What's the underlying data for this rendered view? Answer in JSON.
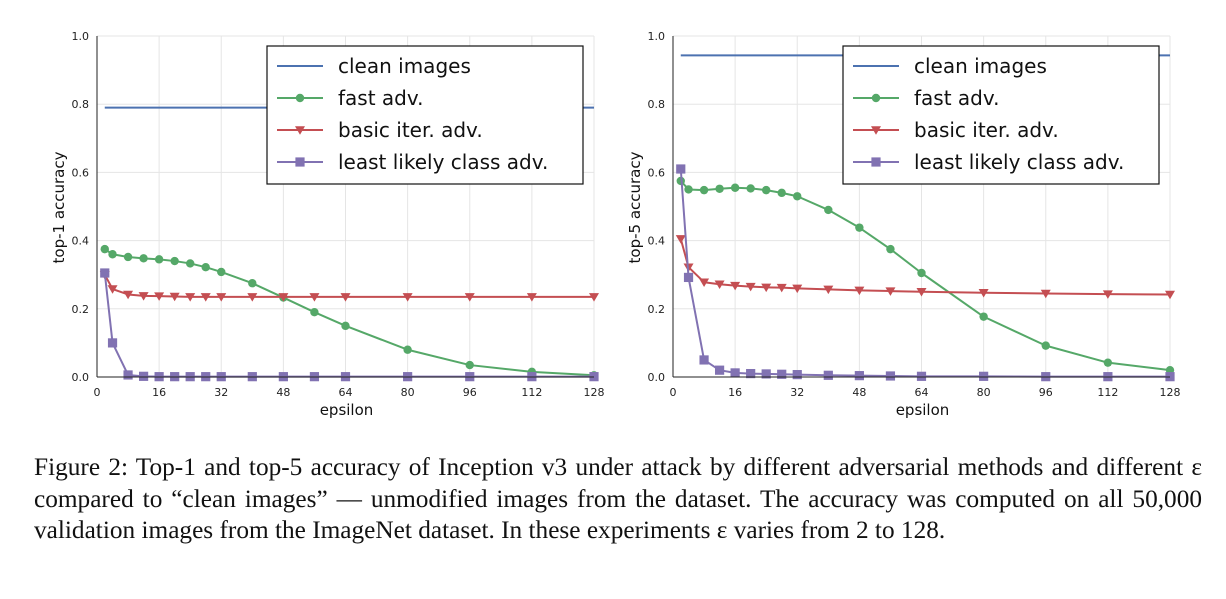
{
  "caption": {
    "text": "Figure 2: Top-1 and top-5 accuracy of Inception v3 under attack by different adversarial methods and different ε compared to “clean images” — unmodified images from the dataset. The accuracy was computed on all 50,000 validation images from the ImageNet dataset. In these experiments ε varies from 2 to 128."
  },
  "colors": {
    "clean": "#4C72B0",
    "fast": "#55A868",
    "basic": "#C44E52",
    "least": "#8172B2",
    "grid": "#E5E5E5",
    "axis": "#222222"
  },
  "chart_data": [
    {
      "type": "line",
      "xlabel": "epsilon",
      "ylabel": "top-1 accuracy",
      "xlim": [
        0,
        128
      ],
      "ylim": [
        0.0,
        1.0
      ],
      "xticks": [
        "0",
        "16",
        "32",
        "48",
        "64",
        "80",
        "96",
        "112",
        "128"
      ],
      "yticks": [
        "0.0",
        "0.2",
        "0.4",
        "0.6",
        "0.8",
        "1.0"
      ],
      "grid": true,
      "legend_position": "top-right",
      "series": [
        {
          "name": "clean images",
          "key": "clean",
          "marker": "none",
          "x": [
            2,
            128
          ],
          "y": [
            0.79,
            0.79
          ]
        },
        {
          "name": "fast adv.",
          "key": "fast",
          "marker": "circle",
          "x": [
            2,
            4,
            8,
            12,
            16,
            20,
            24,
            28,
            32,
            40,
            48,
            56,
            64,
            80,
            96,
            112,
            128
          ],
          "y": [
            0.375,
            0.36,
            0.352,
            0.348,
            0.345,
            0.34,
            0.333,
            0.322,
            0.308,
            0.275,
            0.233,
            0.19,
            0.15,
            0.08,
            0.035,
            0.015,
            0.005
          ]
        },
        {
          "name": "basic iter. adv.",
          "key": "basic",
          "marker": "triangle",
          "x": [
            2,
            4,
            8,
            12,
            16,
            20,
            24,
            28,
            32,
            40,
            48,
            56,
            64,
            80,
            96,
            112,
            128
          ],
          "y": [
            0.3,
            0.258,
            0.242,
            0.238,
            0.237,
            0.236,
            0.235,
            0.235,
            0.235,
            0.235,
            0.235,
            0.235,
            0.235,
            0.235,
            0.235,
            0.235,
            0.235
          ]
        },
        {
          "name": "least likely class adv.",
          "key": "least",
          "marker": "square",
          "x": [
            2,
            4,
            8,
            12,
            16,
            20,
            24,
            28,
            32,
            40,
            48,
            56,
            64,
            80,
            96,
            112,
            128
          ],
          "y": [
            0.305,
            0.1,
            0.006,
            0.002,
            0.001,
            0.001,
            0.001,
            0.001,
            0.001,
            0.001,
            0.001,
            0.001,
            0.001,
            0.001,
            0.001,
            0.001,
            0.001
          ]
        }
      ]
    },
    {
      "type": "line",
      "xlabel": "epsilon",
      "ylabel": "top-5 accuracy",
      "xlim": [
        0,
        128
      ],
      "ylim": [
        0.0,
        1.0
      ],
      "xticks": [
        "0",
        "16",
        "32",
        "48",
        "64",
        "80",
        "96",
        "112",
        "128"
      ],
      "yticks": [
        "0.0",
        "0.2",
        "0.4",
        "0.6",
        "0.8",
        "1.0"
      ],
      "grid": true,
      "legend_position": "top-right",
      "series": [
        {
          "name": "clean images",
          "key": "clean",
          "marker": "none",
          "x": [
            2,
            128
          ],
          "y": [
            0.943,
            0.943
          ]
        },
        {
          "name": "fast adv.",
          "key": "fast",
          "marker": "circle",
          "x": [
            2,
            4,
            8,
            12,
            16,
            20,
            24,
            28,
            32,
            40,
            48,
            56,
            64,
            80,
            96,
            112,
            128
          ],
          "y": [
            0.575,
            0.55,
            0.548,
            0.552,
            0.555,
            0.553,
            0.548,
            0.54,
            0.53,
            0.49,
            0.438,
            0.375,
            0.305,
            0.177,
            0.092,
            0.042,
            0.02
          ]
        },
        {
          "name": "basic iter. adv.",
          "key": "basic",
          "marker": "triangle",
          "x": [
            2,
            4,
            8,
            12,
            16,
            20,
            24,
            28,
            32,
            40,
            48,
            56,
            64,
            80,
            96,
            112,
            128
          ],
          "y": [
            0.405,
            0.322,
            0.278,
            0.272,
            0.268,
            0.265,
            0.263,
            0.262,
            0.26,
            0.257,
            0.254,
            0.252,
            0.25,
            0.247,
            0.245,
            0.243,
            0.242
          ]
        },
        {
          "name": "least likely class adv.",
          "key": "least",
          "marker": "square",
          "x": [
            2,
            4,
            8,
            12,
            16,
            20,
            24,
            28,
            32,
            40,
            48,
            56,
            64,
            80,
            96,
            112,
            128
          ],
          "y": [
            0.61,
            0.292,
            0.05,
            0.02,
            0.012,
            0.01,
            0.009,
            0.008,
            0.007,
            0.005,
            0.004,
            0.003,
            0.002,
            0.002,
            0.001,
            0.001,
            0.001
          ]
        }
      ]
    }
  ]
}
